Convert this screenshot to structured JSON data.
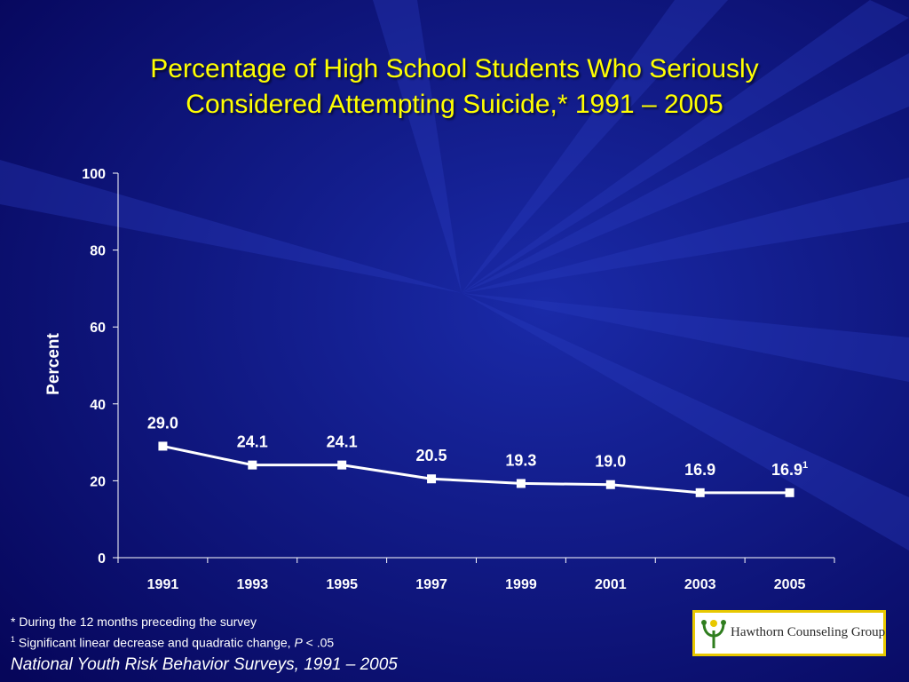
{
  "slide": {
    "title_line1": "Percentage of High School Students Who Seriously",
    "title_line2": "Considered Attempting Suicide,* 1991 – 2005",
    "footnote1": "* During the 12 months preceding the survey",
    "footnote2_sup": "1",
    "footnote2_text": " Significant linear decrease and quadratic change, ",
    "footnote2_p": "P",
    "footnote2_tail": " < .05",
    "source": "National Youth Risk Behavior Surveys, 1991 – 2005",
    "logo_text": "Hawthorn Counseling Group",
    "logo_icon": "tree-icon"
  },
  "chart_data": {
    "type": "line",
    "title": "Percentage of High School Students Who Seriously Considered Attempting Suicide,* 1991 – 2005",
    "xlabel": "",
    "ylabel": "Percent",
    "categories": [
      "1991",
      "1993",
      "1995",
      "1997",
      "1999",
      "2001",
      "2003",
      "2005"
    ],
    "values": [
      29.0,
      24.1,
      24.1,
      20.5,
      19.3,
      19.0,
      16.9,
      16.9
    ],
    "data_labels": [
      "29.0",
      "24.1",
      "24.1",
      "20.5",
      "19.3",
      "19.0",
      "16.9",
      "16.9"
    ],
    "last_label_sup": "1",
    "ylim": [
      0,
      100
    ],
    "yticks": [
      "0",
      "20",
      "40",
      "60",
      "80",
      "100"
    ],
    "grid": false,
    "legend": "none",
    "colors": {
      "line": "#ffffff",
      "marker": "#ffffff",
      "text": "#ffffff",
      "title": "#ffff00",
      "axis": "#ffffff"
    }
  }
}
